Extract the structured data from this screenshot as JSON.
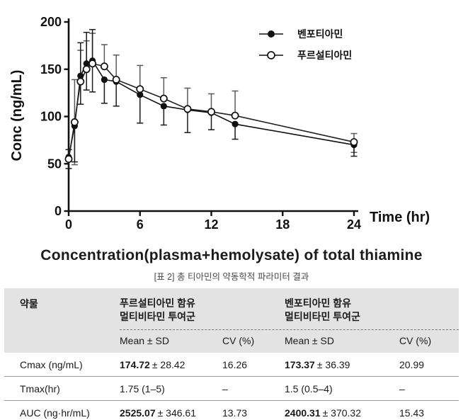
{
  "chart_data": {
    "type": "line",
    "title": "Concentration(plasma+hemolysate) of total thiamine",
    "xlabel": "Time (hr)",
    "ylabel": "Conc (ng/mL)",
    "xlim": [
      0,
      24.5
    ],
    "ylim": [
      0,
      200
    ],
    "x_ticks": [
      0,
      6,
      12,
      18,
      24
    ],
    "y_ticks": [
      0,
      50,
      100,
      150,
      200
    ],
    "grid": false,
    "legend_position": "top-right",
    "x": [
      0,
      0.5,
      1,
      1.5,
      2,
      3,
      4,
      6,
      8,
      10,
      12,
      14,
      24
    ],
    "series": [
      {
        "name": "벤포티아민",
        "marker": "filled-circle",
        "color": "#111111",
        "error_color": "#1a1a1a",
        "values": [
          57,
          90,
          143,
          156,
          159,
          139,
          137,
          123,
          111,
          107,
          104,
          92,
          70
        ],
        "sd_up": [
          8,
          0,
          35,
          33,
          33,
          0,
          0,
          0,
          0,
          0,
          0,
          0,
          0
        ],
        "sd_down": [
          12,
          38,
          30,
          28,
          33,
          25,
          26,
          30,
          20,
          24,
          18,
          16,
          12
        ]
      },
      {
        "name": "푸르설티아민",
        "marker": "open-circle",
        "color": "#222222",
        "error_color": "#5a5a5a",
        "values": [
          55,
          94,
          137,
          150,
          156,
          153,
          139,
          129,
          119,
          108,
          105,
          101,
          73
        ],
        "sd_up": [
          0,
          45,
          33,
          30,
          32,
          23,
          26,
          25,
          22,
          22,
          19,
          26,
          9
        ],
        "sd_down": [
          0,
          45,
          0,
          0,
          0,
          0,
          0,
          0,
          0,
          0,
          0,
          0,
          11
        ]
      }
    ]
  },
  "table": {
    "caption": "[표 2] 총 티아민의 약동학적 파라미터 결과",
    "param_col_header": "약물",
    "groups": [
      {
        "header_line1": "푸르설티아민 함유",
        "header_line2": "멀티비타민 투여군",
        "subheaders": [
          "Mean ± SD",
          "CV (%)"
        ]
      },
      {
        "header_line1": "벤포티아민 함유",
        "header_line2": "멀티비타민 투여군",
        "subheaders": [
          "Mean ± SD",
          "CV (%)"
        ]
      }
    ],
    "rows": [
      {
        "param": "Cmax (ng/mL)",
        "g1_mean": "174.72",
        "g1_rest": "± 28.42",
        "g1_cv": "16.26",
        "g2_mean": "173.37",
        "g2_rest": "± 36.39",
        "g2_cv": "20.99"
      },
      {
        "param": "Tmax(hr)",
        "g1_mean": "1.75 (1–5)",
        "g1_rest": "",
        "g1_cv": "–",
        "g2_mean": "1.5 (0.5–4)",
        "g2_rest": "",
        "g2_cv": "–"
      },
      {
        "param": "AUC (ng·hr/mL)",
        "g1_mean": "2525.07",
        "g1_rest": "± 346.61",
        "g1_cv": "13.73",
        "g2_mean": "2400.31",
        "g2_rest": "± 370.32",
        "g2_cv": "15.43"
      }
    ]
  }
}
